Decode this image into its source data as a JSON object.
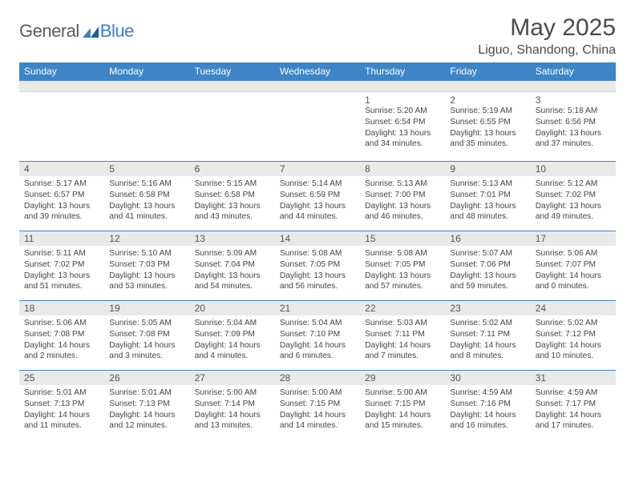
{
  "logo": {
    "text1": "General",
    "text2": "Blue"
  },
  "title": "May 2025",
  "location": "Liguo, Shandong, China",
  "colors": {
    "header_bg": "#3d85c6",
    "header_text": "#ffffff",
    "band_bg": "#e9e9e9",
    "separator": "#3d85c6",
    "logo_gray": "#5a5a5a",
    "logo_blue": "#3d7fc0",
    "body_text": "#444444"
  },
  "weekdays": [
    "Sunday",
    "Monday",
    "Tuesday",
    "Wednesday",
    "Thursday",
    "Friday",
    "Saturday"
  ],
  "weeks": [
    [
      {
        "day": "",
        "lines": [
          "",
          "",
          "",
          ""
        ]
      },
      {
        "day": "",
        "lines": [
          "",
          "",
          "",
          ""
        ]
      },
      {
        "day": "",
        "lines": [
          "",
          "",
          "",
          ""
        ]
      },
      {
        "day": "",
        "lines": [
          "",
          "",
          "",
          ""
        ]
      },
      {
        "day": "1",
        "lines": [
          "Sunrise: 5:20 AM",
          "Sunset: 6:54 PM",
          "Daylight: 13 hours",
          "and 34 minutes."
        ]
      },
      {
        "day": "2",
        "lines": [
          "Sunrise: 5:19 AM",
          "Sunset: 6:55 PM",
          "Daylight: 13 hours",
          "and 35 minutes."
        ]
      },
      {
        "day": "3",
        "lines": [
          "Sunrise: 5:18 AM",
          "Sunset: 6:56 PM",
          "Daylight: 13 hours",
          "and 37 minutes."
        ]
      }
    ],
    [
      {
        "day": "4",
        "lines": [
          "Sunrise: 5:17 AM",
          "Sunset: 6:57 PM",
          "Daylight: 13 hours",
          "and 39 minutes."
        ]
      },
      {
        "day": "5",
        "lines": [
          "Sunrise: 5:16 AM",
          "Sunset: 6:58 PM",
          "Daylight: 13 hours",
          "and 41 minutes."
        ]
      },
      {
        "day": "6",
        "lines": [
          "Sunrise: 5:15 AM",
          "Sunset: 6:58 PM",
          "Daylight: 13 hours",
          "and 43 minutes."
        ]
      },
      {
        "day": "7",
        "lines": [
          "Sunrise: 5:14 AM",
          "Sunset: 6:59 PM",
          "Daylight: 13 hours",
          "and 44 minutes."
        ]
      },
      {
        "day": "8",
        "lines": [
          "Sunrise: 5:13 AM",
          "Sunset: 7:00 PM",
          "Daylight: 13 hours",
          "and 46 minutes."
        ]
      },
      {
        "day": "9",
        "lines": [
          "Sunrise: 5:13 AM",
          "Sunset: 7:01 PM",
          "Daylight: 13 hours",
          "and 48 minutes."
        ]
      },
      {
        "day": "10",
        "lines": [
          "Sunrise: 5:12 AM",
          "Sunset: 7:02 PM",
          "Daylight: 13 hours",
          "and 49 minutes."
        ]
      }
    ],
    [
      {
        "day": "11",
        "lines": [
          "Sunrise: 5:11 AM",
          "Sunset: 7:02 PM",
          "Daylight: 13 hours",
          "and 51 minutes."
        ]
      },
      {
        "day": "12",
        "lines": [
          "Sunrise: 5:10 AM",
          "Sunset: 7:03 PM",
          "Daylight: 13 hours",
          "and 53 minutes."
        ]
      },
      {
        "day": "13",
        "lines": [
          "Sunrise: 5:09 AM",
          "Sunset: 7:04 PM",
          "Daylight: 13 hours",
          "and 54 minutes."
        ]
      },
      {
        "day": "14",
        "lines": [
          "Sunrise: 5:08 AM",
          "Sunset: 7:05 PM",
          "Daylight: 13 hours",
          "and 56 minutes."
        ]
      },
      {
        "day": "15",
        "lines": [
          "Sunrise: 5:08 AM",
          "Sunset: 7:05 PM",
          "Daylight: 13 hours",
          "and 57 minutes."
        ]
      },
      {
        "day": "16",
        "lines": [
          "Sunrise: 5:07 AM",
          "Sunset: 7:06 PM",
          "Daylight: 13 hours",
          "and 59 minutes."
        ]
      },
      {
        "day": "17",
        "lines": [
          "Sunrise: 5:06 AM",
          "Sunset: 7:07 PM",
          "Daylight: 14 hours",
          "and 0 minutes."
        ]
      }
    ],
    [
      {
        "day": "18",
        "lines": [
          "Sunrise: 5:06 AM",
          "Sunset: 7:08 PM",
          "Daylight: 14 hours",
          "and 2 minutes."
        ]
      },
      {
        "day": "19",
        "lines": [
          "Sunrise: 5:05 AM",
          "Sunset: 7:08 PM",
          "Daylight: 14 hours",
          "and 3 minutes."
        ]
      },
      {
        "day": "20",
        "lines": [
          "Sunrise: 5:04 AM",
          "Sunset: 7:09 PM",
          "Daylight: 14 hours",
          "and 4 minutes."
        ]
      },
      {
        "day": "21",
        "lines": [
          "Sunrise: 5:04 AM",
          "Sunset: 7:10 PM",
          "Daylight: 14 hours",
          "and 6 minutes."
        ]
      },
      {
        "day": "22",
        "lines": [
          "Sunrise: 5:03 AM",
          "Sunset: 7:11 PM",
          "Daylight: 14 hours",
          "and 7 minutes."
        ]
      },
      {
        "day": "23",
        "lines": [
          "Sunrise: 5:02 AM",
          "Sunset: 7:11 PM",
          "Daylight: 14 hours",
          "and 8 minutes."
        ]
      },
      {
        "day": "24",
        "lines": [
          "Sunrise: 5:02 AM",
          "Sunset: 7:12 PM",
          "Daylight: 14 hours",
          "and 10 minutes."
        ]
      }
    ],
    [
      {
        "day": "25",
        "lines": [
          "Sunrise: 5:01 AM",
          "Sunset: 7:13 PM",
          "Daylight: 14 hours",
          "and 11 minutes."
        ]
      },
      {
        "day": "26",
        "lines": [
          "Sunrise: 5:01 AM",
          "Sunset: 7:13 PM",
          "Daylight: 14 hours",
          "and 12 minutes."
        ]
      },
      {
        "day": "27",
        "lines": [
          "Sunrise: 5:00 AM",
          "Sunset: 7:14 PM",
          "Daylight: 14 hours",
          "and 13 minutes."
        ]
      },
      {
        "day": "28",
        "lines": [
          "Sunrise: 5:00 AM",
          "Sunset: 7:15 PM",
          "Daylight: 14 hours",
          "and 14 minutes."
        ]
      },
      {
        "day": "29",
        "lines": [
          "Sunrise: 5:00 AM",
          "Sunset: 7:15 PM",
          "Daylight: 14 hours",
          "and 15 minutes."
        ]
      },
      {
        "day": "30",
        "lines": [
          "Sunrise: 4:59 AM",
          "Sunset: 7:16 PM",
          "Daylight: 14 hours",
          "and 16 minutes."
        ]
      },
      {
        "day": "31",
        "lines": [
          "Sunrise: 4:59 AM",
          "Sunset: 7:17 PM",
          "Daylight: 14 hours",
          "and 17 minutes."
        ]
      }
    ]
  ]
}
